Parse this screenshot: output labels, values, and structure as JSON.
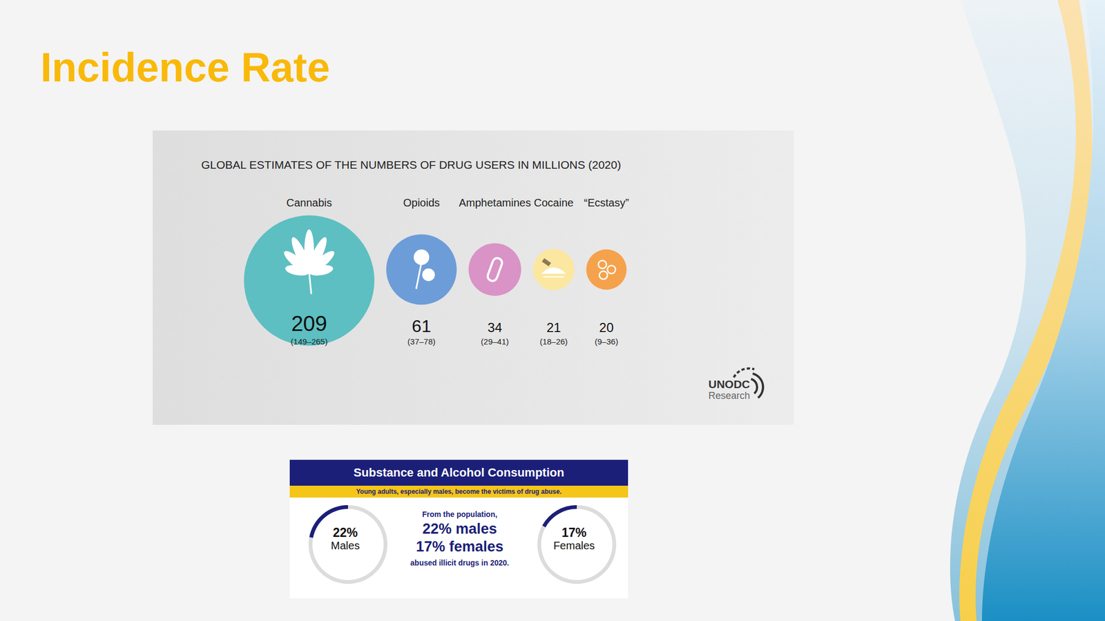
{
  "title": "Incidence Rate",
  "chart_data": [
    {
      "type": "bubble",
      "title": "GLOBAL ESTIMATES OF THE NUMBERS OF DRUG USERS IN MILLIONS (2020)",
      "categories": [
        "Cannabis",
        "Opioids",
        "Amphetamines",
        "Cocaine",
        "“Ecstasy”"
      ],
      "values": [
        209,
        61,
        34,
        21,
        20
      ],
      "range_labels": [
        "(149–265)",
        "(37–78)",
        "(29–41)",
        "(18–26)",
        "(9–36)"
      ],
      "colors": [
        "#5dbfc1",
        "#6d9dd8",
        "#d993c6",
        "#fbe7a0",
        "#f5a24c"
      ],
      "logo": [
        "UNODC",
        "Research"
      ]
    },
    {
      "type": "donut",
      "title": "Substance and Alcohol Consumption",
      "subtitle": "Young adults, especially males, become the victims of drug abuse.",
      "categories": [
        "Males",
        "Females"
      ],
      "values": [
        22,
        17
      ],
      "value_labels": [
        "22%",
        "17%"
      ],
      "text": [
        "From the population,",
        "22% males",
        "17% females",
        "abused illicit drugs in 2020."
      ],
      "color": "#1b1f78"
    }
  ]
}
